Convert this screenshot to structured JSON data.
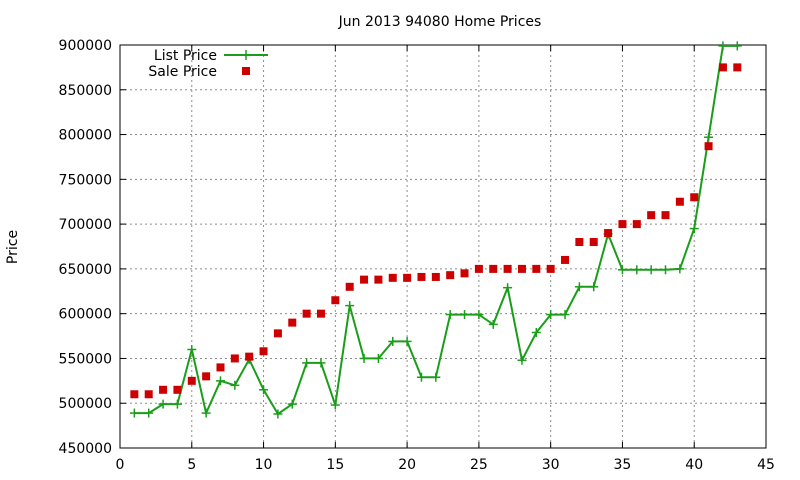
{
  "chart_data": {
    "type": "line",
    "title": "Jun 2013 94080 Home Prices",
    "xlabel": "",
    "ylabel": "Price",
    "xlim": [
      0,
      45
    ],
    "ylim": [
      450000,
      900000
    ],
    "xticks": [
      0,
      5,
      10,
      15,
      20,
      25,
      30,
      35,
      40,
      45
    ],
    "yticks": [
      450000,
      500000,
      550000,
      600000,
      650000,
      700000,
      750000,
      800000,
      850000,
      900000
    ],
    "grid": true,
    "legend_position": "top-left",
    "x": [
      1,
      2,
      3,
      4,
      5,
      6,
      7,
      8,
      9,
      10,
      11,
      12,
      13,
      14,
      15,
      16,
      17,
      18,
      19,
      20,
      21,
      22,
      23,
      24,
      25,
      26,
      27,
      28,
      29,
      30,
      31,
      32,
      33,
      34,
      35,
      36,
      37,
      38,
      39,
      40,
      41,
      42,
      43
    ],
    "series": [
      {
        "name": "List Price",
        "style": "linespoints",
        "color": "#1a9e1a",
        "values": [
          489000,
          489000,
          499000,
          499000,
          560000,
          489000,
          525000,
          520000,
          549000,
          515000,
          488000,
          499000,
          545000,
          545000,
          498000,
          609000,
          550000,
          550000,
          569000,
          569000,
          529000,
          529000,
          599000,
          599000,
          599000,
          588000,
          629000,
          548000,
          579000,
          599000,
          599000,
          630000,
          630000,
          689000,
          649000,
          649000,
          649000,
          649000,
          650000,
          695000,
          797000,
          899000,
          899000
        ]
      },
      {
        "name": "Sale Price",
        "style": "points",
        "color": "#cc0000",
        "values": [
          510000,
          510000,
          515000,
          515000,
          525000,
          530000,
          540000,
          550000,
          552000,
          558000,
          578000,
          590000,
          600000,
          600000,
          615000,
          630000,
          638000,
          638000,
          640000,
          640000,
          641000,
          641000,
          643000,
          645000,
          650000,
          650000,
          650000,
          650000,
          650000,
          650000,
          660000,
          680000,
          680000,
          690000,
          700000,
          700000,
          710000,
          710000,
          725000,
          730000,
          787000,
          875000,
          875000
        ]
      }
    ]
  }
}
